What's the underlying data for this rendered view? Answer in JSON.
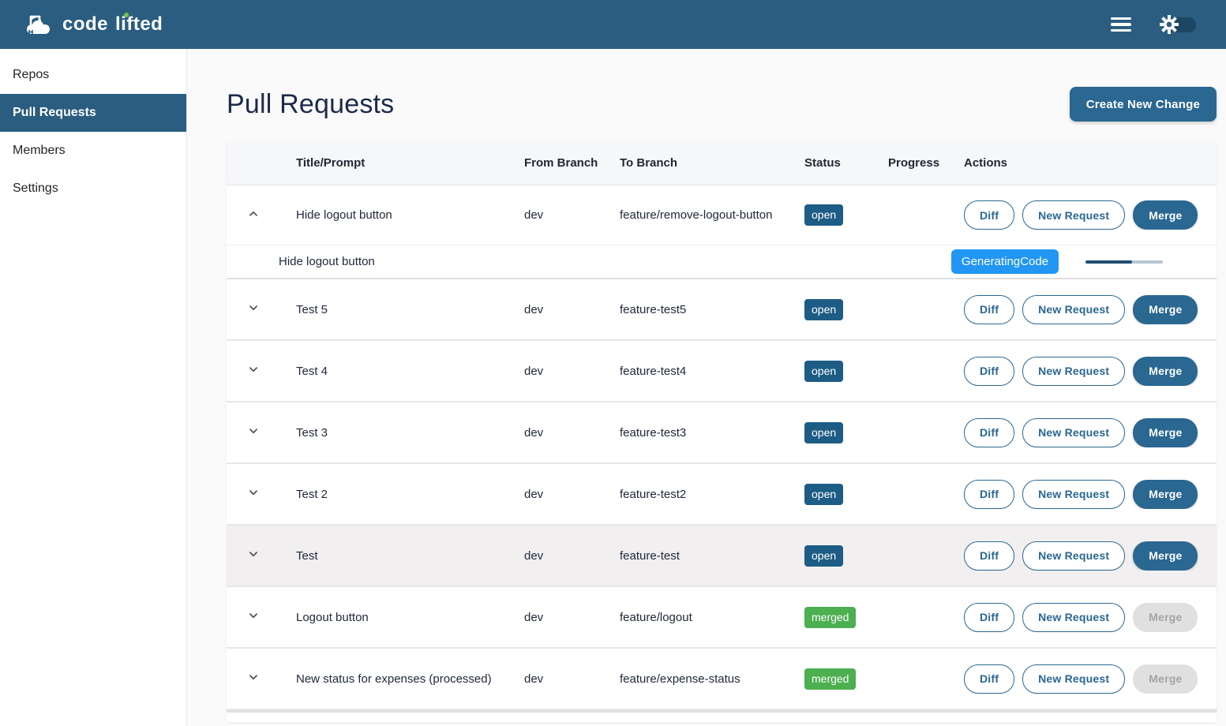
{
  "brand": {
    "name": "code lifted",
    "word1": "code",
    "word2": "lifted",
    "logo_icon": "cloud-crane-icon",
    "i_dot_color": "#7ac142"
  },
  "appbar": {
    "icons": [
      "menu-icon",
      "theme-toggle-sun-icon"
    ]
  },
  "sidebar": {
    "items": [
      {
        "label": "Repos",
        "active": false
      },
      {
        "label": "Pull Requests",
        "active": true
      },
      {
        "label": "Members",
        "active": false
      },
      {
        "label": "Settings",
        "active": false
      }
    ]
  },
  "page": {
    "title": "Pull Requests",
    "create_button_label": "Create New Change"
  },
  "table": {
    "columns": [
      "Title/Prompt",
      "From Branch",
      "To Branch",
      "Status",
      "Progress",
      "Actions"
    ],
    "action_labels": {
      "diff": "Diff",
      "new_request": "New Request",
      "merge": "Merge"
    },
    "rows": [
      {
        "title": "Hide logout button",
        "from": "dev",
        "to": "feature/remove-logout-button",
        "status": "open",
        "expanded": true,
        "expansion": {
          "prompt": "Hide logout button",
          "status_badge": "GeneratingCode",
          "progress_percent": 60
        }
      },
      {
        "title": "Test 5",
        "from": "dev",
        "to": "feature-test5",
        "status": "open",
        "expanded": false
      },
      {
        "title": "Test 4",
        "from": "dev",
        "to": "feature-test4",
        "status": "open",
        "expanded": false
      },
      {
        "title": "Test 3",
        "from": "dev",
        "to": "feature-test3",
        "status": "open",
        "expanded": false
      },
      {
        "title": "Test 2",
        "from": "dev",
        "to": "feature-test2",
        "status": "open",
        "expanded": false
      },
      {
        "title": "Test",
        "from": "dev",
        "to": "feature-test",
        "status": "open",
        "expanded": false,
        "highlighted": true
      },
      {
        "title": "Logout button",
        "from": "dev",
        "to": "feature/logout",
        "status": "merged",
        "expanded": false
      },
      {
        "title": "New status for expenses (processed)",
        "from": "dev",
        "to": "feature/expense-status",
        "status": "merged",
        "expanded": false
      }
    ]
  },
  "colors": {
    "primary": "#2a5d80",
    "button_blue": "#2a6791",
    "open_badge": "#1d5c85",
    "merged_badge": "#4caf50",
    "generating_badge": "#2196f3",
    "progress_fill": "#1d4d6d",
    "progress_track": "#b9c8d2",
    "page_bg": "#fafafa",
    "card_bg": "#ffffff",
    "highlight_row": "#f1efef"
  }
}
